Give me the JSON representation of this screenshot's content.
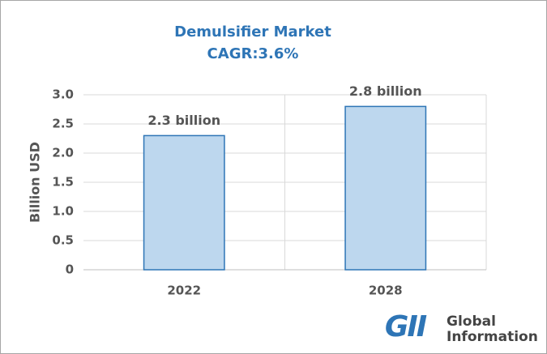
{
  "chart_data": {
    "type": "bar",
    "title": "Demulsifier Market",
    "subtitle": "CAGR:3.6%",
    "y_label": "Billion USD",
    "categories": [
      "2022",
      "2028"
    ],
    "values": [
      2.3,
      2.8
    ],
    "value_labels": [
      "2.3 billion",
      "2.8 billion"
    ],
    "color": "#bdd7ee",
    "edge_color": "#2e75b6",
    "ylim": [
      0,
      3
    ],
    "yticks": [
      0,
      0.5,
      {
        "value": 1,
        "label": "1.0"
      },
      1.5,
      {
        "value": 2,
        "label": "2.0"
      },
      2.5,
      {
        "value": 3,
        "label": "3.0"
      }
    ],
    "grid": true
  },
  "logo": {
    "mark": "GII",
    "lines": [
      "Global",
      "Information"
    ]
  }
}
